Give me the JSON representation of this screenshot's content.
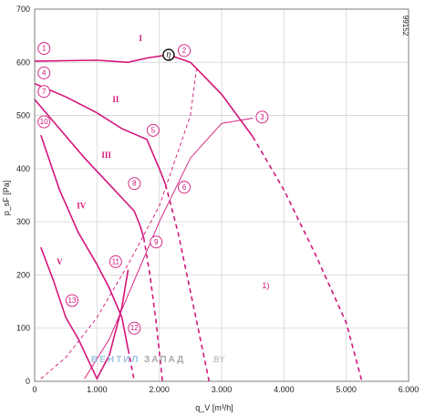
{
  "chart_data": {
    "type": "line",
    "xlabel": "q_V [m³/h]",
    "ylabel": "p_sF [Pa]",
    "xlim": [
      0,
      6000
    ],
    "ylim": [
      0,
      700
    ],
    "x_ticks": [
      "0",
      "1.000",
      "2.000",
      "3.000",
      "4.000",
      "5.000",
      "6.000"
    ],
    "y_ticks": [
      "0",
      "100",
      "200",
      "300",
      "400",
      "500",
      "600",
      "700"
    ],
    "grid": true,
    "code": "99152",
    "note": "1)",
    "efficiency_symbol": "η",
    "eta_point": {
      "x": 2150,
      "y": 614
    },
    "watermark": [
      "ВЕНТИЛ",
      "ЗАПАД",
      ".BY"
    ],
    "series": [
      {
        "roman": "I",
        "solid": [
          [
            0,
            602
          ],
          [
            500,
            603
          ],
          [
            1000,
            604
          ],
          [
            1500,
            600
          ],
          [
            1800,
            608
          ],
          [
            2150,
            614
          ],
          [
            2500,
            600
          ],
          [
            3000,
            540
          ],
          [
            3500,
            460
          ]
        ],
        "dashed": [
          [
            3500,
            460
          ],
          [
            4000,
            360
          ],
          [
            4500,
            240
          ],
          [
            5000,
            110
          ],
          [
            5250,
            0
          ]
        ]
      },
      {
        "roman": "II",
        "solid": [
          [
            0,
            560
          ],
          [
            500,
            535
          ],
          [
            1000,
            505
          ],
          [
            1400,
            475
          ],
          [
            1800,
            455
          ],
          [
            2000,
            400
          ],
          [
            2100,
            370
          ]
        ],
        "dashed": [
          [
            2100,
            370
          ],
          [
            2300,
            280
          ],
          [
            2550,
            140
          ],
          [
            2800,
            0
          ]
        ]
      },
      {
        "roman": "III",
        "solid": [
          [
            0,
            530
          ],
          [
            400,
            475
          ],
          [
            800,
            420
          ],
          [
            1200,
            370
          ],
          [
            1600,
            320
          ],
          [
            1700,
            290
          ],
          [
            1750,
            270
          ]
        ],
        "dashed": [
          [
            1750,
            270
          ],
          [
            1850,
            200
          ],
          [
            1950,
            110
          ],
          [
            2050,
            0
          ]
        ]
      },
      {
        "roman": "IV",
        "solid": [
          [
            100,
            463
          ],
          [
            400,
            360
          ],
          [
            700,
            280
          ],
          [
            1000,
            220
          ],
          [
            1200,
            175
          ],
          [
            1400,
            120
          ],
          [
            1500,
            60
          ]
        ],
        "dashed": [
          [
            1500,
            60
          ],
          [
            1600,
            0
          ]
        ]
      },
      {
        "roman": "V",
        "solid": [
          [
            100,
            252
          ],
          [
            300,
            190
          ],
          [
            500,
            120
          ],
          [
            700,
            80
          ],
          [
            1000,
            5
          ],
          [
            1200,
            50
          ],
          [
            1400,
            140
          ],
          [
            1500,
            210
          ]
        ],
        "dashed": []
      }
    ],
    "system_curves": [
      {
        "style": "dashed",
        "points": [
          [
            100,
            5
          ],
          [
            500,
            45
          ],
          [
            1000,
            120
          ],
          [
            1500,
            220
          ],
          [
            2000,
            330
          ],
          [
            2500,
            500
          ],
          [
            2600,
            590
          ]
        ]
      },
      {
        "style": "solid",
        "points": [
          [
            800,
            5
          ],
          [
            1200,
            80
          ],
          [
            1600,
            190
          ],
          [
            2000,
            300
          ],
          [
            2500,
            420
          ],
          [
            3000,
            485
          ],
          [
            3500,
            495
          ]
        ]
      }
    ],
    "markers": [
      {
        "label": "1",
        "x": 150,
        "y": 626
      },
      {
        "label": "2",
        "x": 2400,
        "y": 622
      },
      {
        "label": "3",
        "x": 3650,
        "y": 497
      },
      {
        "label": "4",
        "x": 150,
        "y": 580
      },
      {
        "label": "5",
        "x": 1900,
        "y": 472
      },
      {
        "label": "6",
        "x": 2400,
        "y": 365
      },
      {
        "label": "7",
        "x": 150,
        "y": 545
      },
      {
        "label": "8",
        "x": 1600,
        "y": 372
      },
      {
        "label": "9",
        "x": 1950,
        "y": 262
      },
      {
        "label": "10",
        "x": 150,
        "y": 488
      },
      {
        "label": "11",
        "x": 1300,
        "y": 225
      },
      {
        "label": "12",
        "x": 1600,
        "y": 100
      },
      {
        "label": "13",
        "x": 600,
        "y": 152
      }
    ],
    "romans": [
      {
        "label": "I",
        "x": 1700,
        "y": 640
      },
      {
        "label": "II",
        "x": 1300,
        "y": 525
      },
      {
        "label": "III",
        "x": 1150,
        "y": 420
      },
      {
        "label": "IV",
        "x": 750,
        "y": 325
      },
      {
        "label": "V",
        "x": 400,
        "y": 220
      }
    ],
    "note_pos": {
      "x": 3650,
      "y": 175
    }
  }
}
